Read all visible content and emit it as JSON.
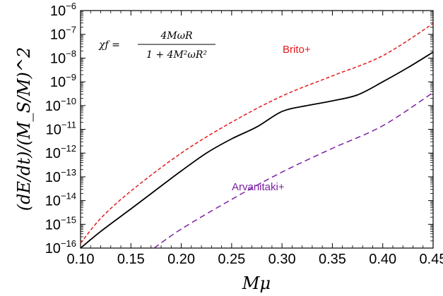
{
  "chart_data": {
    "type": "line",
    "title": "",
    "xlabel": "Mμ",
    "ylabel": "(dE/dt)/(M_S/M)^2",
    "xlim": [
      0.1,
      0.45
    ],
    "ylim_log10": [
      -16,
      -6
    ],
    "yscale": "log",
    "grid": false,
    "x_ticks": [
      "0.10",
      "0.15",
      "0.20",
      "0.25",
      "0.30",
      "0.35",
      "0.40",
      "0.45"
    ],
    "y_tick_exponents": [
      "-16",
      "-15",
      "-14",
      "-13",
      "-12",
      "-11",
      "-10",
      "-9",
      "-8",
      "-7",
      "-6"
    ],
    "annotation": {
      "lhs": "χf =",
      "numerator": "4MωR",
      "denominator": "1 + 4M²ωR²"
    },
    "series": [
      {
        "name": "Brito+",
        "style": "dashed",
        "color": "#e41a1c",
        "x": [
          0.1,
          0.12,
          0.15,
          0.2,
          0.25,
          0.3,
          0.35,
          0.4,
          0.45
        ],
        "log10_y": [
          -15.8,
          -14.75,
          -13.6,
          -12.0,
          -10.7,
          -9.6,
          -8.75,
          -7.9,
          -6.55
        ]
      },
      {
        "name": "",
        "style": "solid",
        "color": "#000000",
        "x": [
          0.1,
          0.12,
          0.15,
          0.175,
          0.2,
          0.225,
          0.25,
          0.275,
          0.3,
          0.325,
          0.35,
          0.375,
          0.4,
          0.425,
          0.45
        ],
        "log10_y": [
          -16.0,
          -15.3,
          -14.35,
          -13.55,
          -12.75,
          -12.0,
          -11.4,
          -10.9,
          -10.25,
          -10.0,
          -9.8,
          -9.55,
          -9.0,
          -8.4,
          -7.75
        ]
      },
      {
        "name": "Arvanitaki+",
        "style": "dashed",
        "color": "#7b1fa2",
        "x": [
          0.173,
          0.2,
          0.25,
          0.3,
          0.35,
          0.4,
          0.45
        ],
        "log10_y": [
          -16.0,
          -15.2,
          -13.95,
          -12.8,
          -11.8,
          -10.85,
          -9.45
        ]
      }
    ]
  }
}
